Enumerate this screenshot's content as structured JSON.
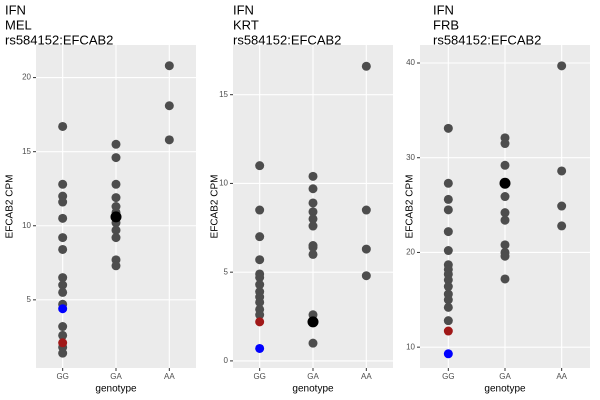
{
  "chart_data": [
    {
      "type": "scatter",
      "title": [
        "IFN",
        "MEL",
        "rs584152:EFCAB2"
      ],
      "xlabel": "genotype",
      "ylabel": "EFCAB2 CPM",
      "categories": [
        "GG",
        "GA",
        "AA"
      ],
      "ylim": [
        0.4,
        22.2
      ],
      "yticks": [
        5,
        10,
        15,
        20
      ],
      "grid": true,
      "series": [
        {
          "color": "#4d4d4d",
          "x": [
            "GG",
            "GG",
            "GG",
            "GG",
            "GG",
            "GG",
            "GG",
            "GG",
            "GG",
            "GG",
            "GG",
            "GG",
            "GG",
            "GG",
            "GG",
            "GA",
            "GA",
            "GA",
            "GA",
            "GA",
            "GA",
            "GA",
            "GA",
            "GA",
            "GA",
            "GA",
            "AA",
            "AA",
            "AA"
          ],
          "values": [
            16.7,
            12.8,
            12.0,
            11.6,
            10.5,
            9.2,
            8.4,
            6.5,
            6.0,
            5.5,
            4.7,
            3.2,
            2.6,
            1.8,
            1.4,
            15.5,
            14.6,
            12.8,
            11.9,
            11.3,
            10.9,
            10.2,
            9.7,
            9.2,
            7.7,
            7.3,
            20.8,
            18.1,
            15.8
          ]
        },
        {
          "color": "#0000ff",
          "x": [
            "GG"
          ],
          "values": [
            4.4
          ]
        },
        {
          "color": "#a01818",
          "x": [
            "GG"
          ],
          "values": [
            2.1
          ]
        },
        {
          "color": "#000000",
          "x": [
            "GA"
          ],
          "values": [
            10.6
          ]
        }
      ]
    },
    {
      "type": "scatter",
      "title": [
        "IFN",
        "KRT",
        "rs584152:EFCAB2"
      ],
      "xlabel": "genotype",
      "ylabel": "EFCAB2 CPM",
      "categories": [
        "GG",
        "GA",
        "AA"
      ],
      "ylim": [
        -0.4,
        17.8
      ],
      "yticks": [
        0,
        5,
        10,
        15
      ],
      "grid": true,
      "series": [
        {
          "color": "#4d4d4d",
          "x": [
            "GG",
            "GG",
            "GG",
            "GG",
            "GG",
            "GG",
            "GG",
            "GG",
            "GG",
            "GG",
            "GG",
            "GG",
            "GA",
            "GA",
            "GA",
            "GA",
            "GA",
            "GA",
            "GA",
            "GA",
            "GA",
            "GA",
            "GA",
            "AA",
            "AA",
            "AA",
            "AA"
          ],
          "values": [
            11.0,
            8.5,
            7.0,
            5.7,
            4.9,
            4.7,
            4.3,
            3.9,
            3.6,
            3.3,
            2.9,
            2.6,
            10.4,
            9.7,
            8.9,
            8.4,
            8.0,
            7.6,
            6.5,
            6.4,
            6.0,
            2.6,
            1.0,
            16.6,
            8.5,
            6.3,
            4.8
          ]
        },
        {
          "color": "#0000ff",
          "x": [
            "GG"
          ],
          "values": [
            0.7
          ]
        },
        {
          "color": "#a01818",
          "x": [
            "GG"
          ],
          "values": [
            2.2
          ]
        },
        {
          "color": "#000000",
          "x": [
            "GA"
          ],
          "values": [
            2.2
          ]
        }
      ]
    },
    {
      "type": "scatter",
      "title": [
        "IFN",
        "FRB",
        "rs584152:EFCAB2"
      ],
      "xlabel": "genotype",
      "ylabel": "EFCAB2 CPM",
      "categories": [
        "GG",
        "GA",
        "AA"
      ],
      "ylim": [
        7.8,
        41.9
      ],
      "yticks": [
        10,
        20,
        30,
        40
      ],
      "grid": true,
      "series": [
        {
          "color": "#4d4d4d",
          "x": [
            "GG",
            "GG",
            "GG",
            "GG",
            "GG",
            "GG",
            "GG",
            "GG",
            "GG",
            "GG",
            "GG",
            "GG",
            "GG",
            "GG",
            "GG",
            "GA",
            "GA",
            "GA",
            "GA",
            "GA",
            "GA",
            "GA",
            "GA",
            "GA",
            "GA",
            "AA",
            "AA",
            "AA",
            "AA"
          ],
          "values": [
            33.1,
            27.3,
            25.6,
            24.5,
            22.2,
            20.2,
            18.7,
            18.2,
            17.7,
            17.1,
            16.4,
            15.6,
            15.0,
            14.2,
            12.8,
            32.1,
            31.5,
            29.2,
            25.9,
            24.2,
            23.4,
            20.8,
            20.0,
            19.6,
            17.2,
            39.7,
            28.6,
            24.9,
            22.8
          ]
        },
        {
          "color": "#0000ff",
          "x": [
            "GG"
          ],
          "values": [
            9.3
          ]
        },
        {
          "color": "#a01818",
          "x": [
            "GG"
          ],
          "values": [
            11.7
          ]
        },
        {
          "color": "#000000",
          "x": [
            "GA"
          ],
          "values": [
            27.3
          ]
        }
      ]
    }
  ]
}
